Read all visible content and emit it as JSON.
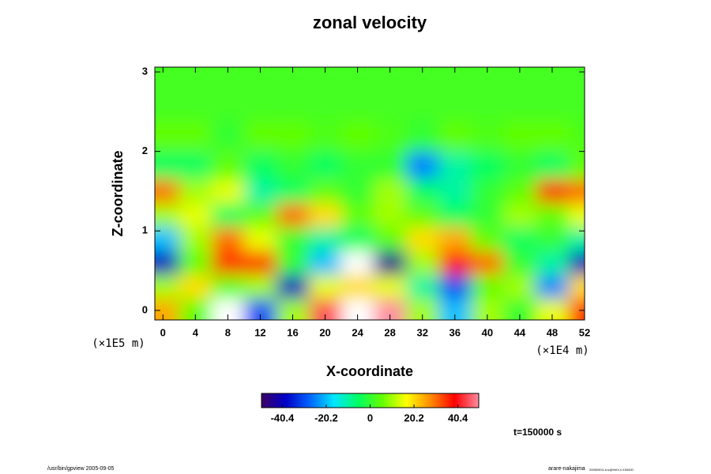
{
  "chart_data": {
    "type": "heatmap",
    "title": "zonal velocity",
    "x_label": "X-coordinate",
    "y_label": "Z-coordinate",
    "x_unit": "(×1E4 m)",
    "y_unit": "(×1E5 m)",
    "x": [
      0,
      4,
      8,
      12,
      16,
      20,
      24,
      28,
      32,
      36,
      40,
      44,
      48,
      52
    ],
    "y": [
      0,
      0.3,
      0.6,
      0.9,
      1.2,
      1.5,
      1.8,
      2.2,
      2.6,
      3.0
    ],
    "values": [
      [
        25,
        5,
        -55,
        -30,
        10,
        45,
        55,
        50,
        10,
        -20,
        10,
        0,
        15,
        35
      ],
      [
        10,
        20,
        5,
        10,
        -40,
        15,
        20,
        15,
        -10,
        -30,
        5,
        10,
        -25,
        20
      ],
      [
        -40,
        5,
        35,
        35,
        0,
        -20,
        -55,
        -45,
        10,
        40,
        30,
        0,
        -10,
        -40
      ],
      [
        -20,
        10,
        30,
        15,
        0,
        -10,
        -5,
        5,
        20,
        25,
        5,
        -5,
        0,
        -10
      ],
      [
        10,
        15,
        -5,
        5,
        30,
        20,
        5,
        10,
        5,
        -5,
        0,
        10,
        5,
        15
      ],
      [
        30,
        10,
        15,
        -10,
        -5,
        5,
        0,
        10,
        -5,
        -10,
        0,
        5,
        35,
        30
      ],
      [
        -5,
        -5,
        5,
        -5,
        0,
        -5,
        0,
        0,
        -25,
        -10,
        -5,
        0,
        -5,
        5
      ],
      [
        5,
        5,
        0,
        5,
        5,
        3,
        5,
        3,
        0,
        5,
        3,
        5,
        5,
        3
      ],
      [
        2,
        2,
        2,
        2,
        2,
        2,
        2,
        2,
        2,
        2,
        2,
        2,
        2,
        2
      ],
      [
        2,
        2,
        2,
        2,
        2,
        2,
        2,
        2,
        2,
        2,
        2,
        2,
        2,
        2
      ]
    ],
    "xlim": [
      -1,
      52
    ],
    "ylim": [
      -0.12,
      3.06
    ],
    "xticks": [
      0,
      4,
      8,
      12,
      16,
      20,
      24,
      28,
      32,
      36,
      40,
      44,
      48,
      52
    ],
    "yticks": [
      0,
      1,
      2,
      3
    ],
    "colorbar": {
      "lim": [
        -50,
        50
      ],
      "ticks": [
        -40.4,
        -20.2,
        0,
        20.2,
        40.4
      ],
      "colors": [
        "#3c0064",
        "#0000c8",
        "#0064ff",
        "#00e6ff",
        "#00ff64",
        "#64ff00",
        "#ffff00",
        "#ff8c00",
        "#ff0000",
        "#ff8ca0"
      ]
    },
    "out_of_range_color": "#ffffff",
    "annotation": "t=150000 s",
    "footer_left": "/usr/bin/gpview 2005-09-05",
    "footer_right": "arare-nakajima",
    "footer_right_sub": "20050903-1nc@VelX,t=150000"
  }
}
